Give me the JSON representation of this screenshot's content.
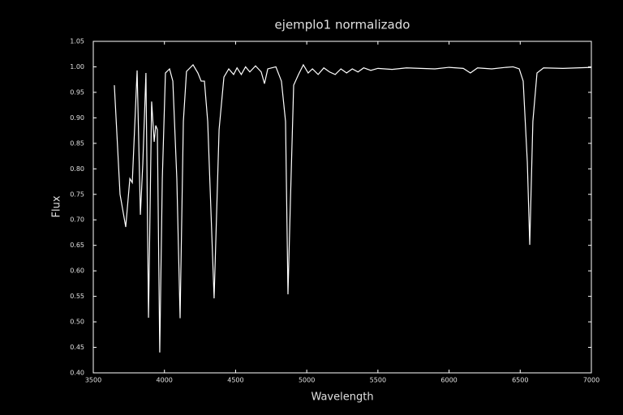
{
  "chart_data": {
    "type": "line",
    "title": "ejemplo1   normalizado",
    "x_label": "Wavelength",
    "y_label": "Flux",
    "x": [
      3648,
      3688,
      3728,
      3757,
      3774,
      3808,
      3831,
      3848,
      3870,
      3888,
      3910,
      3928,
      3939,
      3950,
      3967,
      3985,
      4007,
      4036,
      4059,
      4087,
      4110,
      4133,
      4155,
      4201,
      4235,
      4258,
      4281,
      4304,
      4349,
      4384,
      4418,
      4452,
      4486,
      4510,
      4540,
      4570,
      4600,
      4640,
      4680,
      4703,
      4726,
      4783,
      4822,
      4851,
      4868,
      4885,
      4908,
      4942,
      4976,
      5010,
      5040,
      5080,
      5120,
      5160,
      5200,
      5240,
      5280,
      5320,
      5360,
      5400,
      5450,
      5500,
      5600,
      5700,
      5800,
      5900,
      6000,
      6100,
      6150,
      6200,
      6300,
      6400,
      6450,
      6493,
      6521,
      6550,
      6567,
      6589,
      6618,
      6664,
      6800,
      7000
    ],
    "series": [
      {
        "name": "Flux",
        "color": "#ffffff",
        "values": [
          0.964,
          0.75,
          0.686,
          0.781,
          0.773,
          0.993,
          0.71,
          0.81,
          0.988,
          0.508,
          0.932,
          0.853,
          0.885,
          0.877,
          0.44,
          0.78,
          0.988,
          0.996,
          0.972,
          0.781,
          0.507,
          0.893,
          0.991,
          1.004,
          0.988,
          0.972,
          0.972,
          0.893,
          0.546,
          0.877,
          0.98,
          0.996,
          0.985,
          0.998,
          0.985,
          1.0,
          0.99,
          1.002,
          0.99,
          0.967,
          0.996,
          1.0,
          0.972,
          0.893,
          0.554,
          0.734,
          0.964,
          0.985,
          1.004,
          0.988,
          0.996,
          0.985,
          0.998,
          0.99,
          0.985,
          0.996,
          0.988,
          0.996,
          0.99,
          0.998,
          0.993,
          0.997,
          0.995,
          0.998,
          0.997,
          0.996,
          0.999,
          0.997,
          0.988,
          0.998,
          0.996,
          0.999,
          1.0,
          0.996,
          0.972,
          0.813,
          0.651,
          0.893,
          0.988,
          0.998,
          0.997,
          0.999
        ]
      }
    ],
    "xlim": [
      3500,
      7000
    ],
    "xticks": [
      3500,
      4000,
      4500,
      5000,
      5500,
      6000,
      6500,
      7000
    ],
    "ylim": [
      0.4,
      1.05
    ],
    "yticks": [
      {
        "value": 0.4,
        "label": "0.40"
      },
      0.45,
      {
        "value": 0.5,
        "label": "0.50"
      },
      0.55,
      {
        "value": 0.6,
        "label": "0.60"
      },
      0.65,
      {
        "value": 0.7,
        "label": "0.70"
      },
      0.75,
      {
        "value": 0.8,
        "label": "0.80"
      },
      0.85,
      {
        "value": 0.9,
        "label": "0.90"
      },
      0.95,
      {
        "value": 1.0,
        "label": "1.00"
      },
      1.05
    ]
  }
}
